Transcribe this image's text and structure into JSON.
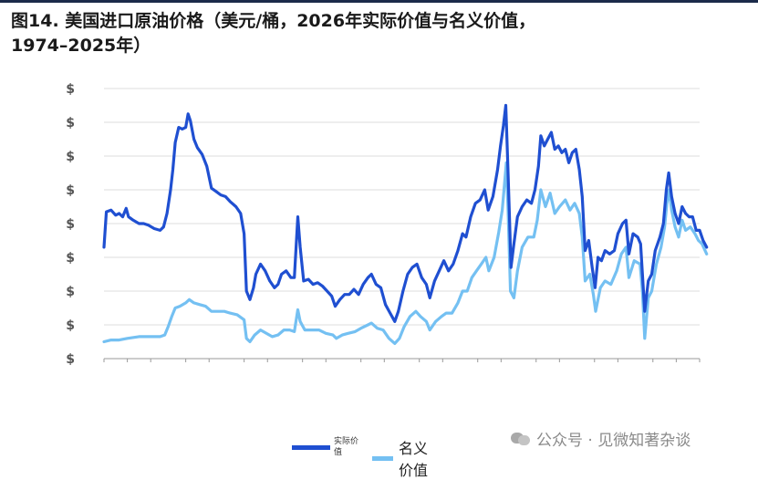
{
  "header": {
    "title_line1": "图14. 美国进口原油价格（美元/桶，2026年实际价值与名义价值，",
    "title_line2": "1974–2025年）"
  },
  "watermark": {
    "text": "公众号 · 见微知著杂谈",
    "icon": "wechat-icon"
  },
  "legend": {
    "real_label": "实际价值",
    "nominal_label": "名义价值"
  },
  "colors": {
    "real": "#1f4fd1",
    "nominal": "#74c0f2",
    "grid": "#dedede",
    "axis": "#9a9a9a",
    "header_rule": "#1b2a4a"
  },
  "chart_data": {
    "type": "line",
    "title": "图14. 美国进口原油价格（美元/桶，2026年实际价值与名义价值，1974–2025年）",
    "x_range": [
      1974,
      2025
    ],
    "ylim": [
      0,
      160
    ],
    "y_ticks": [
      {
        "value": 0,
        "label": "$"
      },
      {
        "value": 20,
        "label": "$"
      },
      {
        "value": 40,
        "label": "$"
      },
      {
        "value": 60,
        "label": "$"
      },
      {
        "value": 80,
        "label": "$"
      },
      {
        "value": 100,
        "label": "$"
      },
      {
        "value": 120,
        "label": "$"
      },
      {
        "value": 140,
        "label": "$"
      },
      {
        "value": 160,
        "label": "$"
      }
    ],
    "x_tick_years": [
      1974,
      1976,
      1978,
      1981,
      1983,
      1986,
      1988,
      1991,
      1993,
      1996,
      1998,
      2001,
      2003,
      2006,
      2008,
      2011,
      2013,
      2016,
      2018,
      2021,
      2023,
      2025
    ],
    "x_tick_text": "",
    "grid": true,
    "legend_position": "bottom",
    "series": [
      {
        "name": "实际价值",
        "key": "real",
        "points": [
          [
            1974.0,
            66
          ],
          [
            1974.2,
            87
          ],
          [
            1974.6,
            88
          ],
          [
            1975.0,
            85
          ],
          [
            1975.3,
            86
          ],
          [
            1975.6,
            84
          ],
          [
            1975.9,
            89
          ],
          [
            1976.1,
            84
          ],
          [
            1976.5,
            82
          ],
          [
            1977.0,
            80
          ],
          [
            1977.4,
            80
          ],
          [
            1977.8,
            79
          ],
          [
            1978.3,
            77
          ],
          [
            1978.8,
            76
          ],
          [
            1979.1,
            78
          ],
          [
            1979.4,
            86
          ],
          [
            1979.7,
            100
          ],
          [
            1979.9,
            112
          ],
          [
            1980.1,
            128
          ],
          [
            1980.4,
            137
          ],
          [
            1980.7,
            136
          ],
          [
            1981.0,
            137
          ],
          [
            1981.2,
            145
          ],
          [
            1981.4,
            141
          ],
          [
            1981.7,
            130
          ],
          [
            1982.0,
            125
          ],
          [
            1982.4,
            121
          ],
          [
            1982.8,
            114
          ],
          [
            1983.2,
            101
          ],
          [
            1983.6,
            99
          ],
          [
            1984.0,
            97
          ],
          [
            1984.4,
            96
          ],
          [
            1984.8,
            93
          ],
          [
            1985.3,
            90
          ],
          [
            1985.7,
            86
          ],
          [
            1986.0,
            74
          ],
          [
            1986.2,
            40
          ],
          [
            1986.5,
            35
          ],
          [
            1986.8,
            42
          ],
          [
            1987.0,
            50
          ],
          [
            1987.4,
            56
          ],
          [
            1987.8,
            52
          ],
          [
            1988.2,
            46
          ],
          [
            1988.6,
            42
          ],
          [
            1988.9,
            44
          ],
          [
            1989.2,
            50
          ],
          [
            1989.6,
            52
          ],
          [
            1990.0,
            48
          ],
          [
            1990.3,
            48
          ],
          [
            1990.6,
            84
          ],
          [
            1990.8,
            66
          ],
          [
            1991.1,
            46
          ],
          [
            1991.5,
            47
          ],
          [
            1991.9,
            44
          ],
          [
            1992.3,
            45
          ],
          [
            1992.7,
            43
          ],
          [
            1993.1,
            40
          ],
          [
            1993.5,
            37
          ],
          [
            1993.8,
            31
          ],
          [
            1994.2,
            35
          ],
          [
            1994.6,
            38
          ],
          [
            1995.0,
            38
          ],
          [
            1995.4,
            41
          ],
          [
            1995.8,
            38
          ],
          [
            1996.2,
            44
          ],
          [
            1996.6,
            48
          ],
          [
            1996.9,
            50
          ],
          [
            1997.3,
            44
          ],
          [
            1997.7,
            42
          ],
          [
            1998.1,
            32
          ],
          [
            1998.5,
            27
          ],
          [
            1998.9,
            22
          ],
          [
            1999.2,
            28
          ],
          [
            1999.6,
            40
          ],
          [
            2000.0,
            50
          ],
          [
            2000.4,
            54
          ],
          [
            2000.8,
            56
          ],
          [
            2001.2,
            48
          ],
          [
            2001.6,
            44
          ],
          [
            2001.9,
            36
          ],
          [
            2002.3,
            46
          ],
          [
            2002.7,
            52
          ],
          [
            2003.1,
            58
          ],
          [
            2003.5,
            52
          ],
          [
            2003.9,
            56
          ],
          [
            2004.3,
            64
          ],
          [
            2004.7,
            74
          ],
          [
            2005.0,
            72
          ],
          [
            2005.4,
            84
          ],
          [
            2005.8,
            92
          ],
          [
            2006.2,
            94
          ],
          [
            2006.6,
            100
          ],
          [
            2006.9,
            88
          ],
          [
            2007.3,
            96
          ],
          [
            2007.7,
            112
          ],
          [
            2007.95,
            126
          ],
          [
            2008.2,
            138
          ],
          [
            2008.4,
            150
          ],
          [
            2008.55,
            120
          ],
          [
            2008.7,
            88
          ],
          [
            2008.85,
            54
          ],
          [
            2009.1,
            68
          ],
          [
            2009.4,
            84
          ],
          [
            2009.8,
            90
          ],
          [
            2010.2,
            94
          ],
          [
            2010.6,
            92
          ],
          [
            2010.9,
            100
          ],
          [
            2011.2,
            114
          ],
          [
            2011.4,
            132
          ],
          [
            2011.7,
            126
          ],
          [
            2012.0,
            130
          ],
          [
            2012.3,
            134
          ],
          [
            2012.6,
            124
          ],
          [
            2012.9,
            126
          ],
          [
            2013.2,
            122
          ],
          [
            2013.5,
            124
          ],
          [
            2013.8,
            116
          ],
          [
            2014.1,
            122
          ],
          [
            2014.4,
            124
          ],
          [
            2014.7,
            112
          ],
          [
            2014.95,
            96
          ],
          [
            2015.2,
            64
          ],
          [
            2015.5,
            70
          ],
          [
            2015.8,
            54
          ],
          [
            2016.05,
            42
          ],
          [
            2016.3,
            60
          ],
          [
            2016.6,
            58
          ],
          [
            2016.9,
            64
          ],
          [
            2017.3,
            62
          ],
          [
            2017.7,
            64
          ],
          [
            2018.0,
            74
          ],
          [
            2018.4,
            80
          ],
          [
            2018.7,
            82
          ],
          [
            2018.95,
            62
          ],
          [
            2019.3,
            74
          ],
          [
            2019.7,
            72
          ],
          [
            2019.95,
            68
          ],
          [
            2020.1,
            50
          ],
          [
            2020.3,
            28
          ],
          [
            2020.6,
            46
          ],
          [
            2020.9,
            50
          ],
          [
            2021.2,
            64
          ],
          [
            2021.6,
            72
          ],
          [
            2021.9,
            80
          ],
          [
            2022.15,
            100
          ],
          [
            2022.35,
            110
          ],
          [
            2022.6,
            96
          ],
          [
            2022.9,
            86
          ],
          [
            2023.2,
            80
          ],
          [
            2023.5,
            90
          ],
          [
            2023.8,
            86
          ],
          [
            2024.1,
            84
          ],
          [
            2024.4,
            84
          ],
          [
            2024.7,
            76
          ],
          [
            2025.0,
            76
          ],
          [
            2025.3,
            70
          ],
          [
            2025.6,
            66
          ]
        ]
      },
      {
        "name": "名义价值",
        "key": "nominal",
        "points": [
          [
            1974.0,
            10
          ],
          [
            1974.6,
            11
          ],
          [
            1975.3,
            11
          ],
          [
            1976.0,
            12
          ],
          [
            1977.0,
            13
          ],
          [
            1978.0,
            13
          ],
          [
            1978.8,
            13
          ],
          [
            1979.2,
            14
          ],
          [
            1979.5,
            19
          ],
          [
            1979.8,
            25
          ],
          [
            1980.1,
            30
          ],
          [
            1980.5,
            31
          ],
          [
            1981.0,
            33
          ],
          [
            1981.3,
            35
          ],
          [
            1981.7,
            33
          ],
          [
            1982.2,
            32
          ],
          [
            1982.7,
            31
          ],
          [
            1983.2,
            28
          ],
          [
            1983.7,
            28
          ],
          [
            1984.3,
            28
          ],
          [
            1984.8,
            27
          ],
          [
            1985.4,
            26
          ],
          [
            1986.0,
            23
          ],
          [
            1986.2,
            12
          ],
          [
            1986.5,
            10
          ],
          [
            1986.9,
            14
          ],
          [
            1987.4,
            17
          ],
          [
            1987.9,
            15
          ],
          [
            1988.4,
            13
          ],
          [
            1988.9,
            14
          ],
          [
            1989.4,
            17
          ],
          [
            1989.9,
            17
          ],
          [
            1990.3,
            16
          ],
          [
            1990.6,
            29
          ],
          [
            1990.8,
            22
          ],
          [
            1991.2,
            17
          ],
          [
            1991.8,
            17
          ],
          [
            1992.4,
            17
          ],
          [
            1993.0,
            15
          ],
          [
            1993.6,
            14
          ],
          [
            1993.9,
            12
          ],
          [
            1994.4,
            14
          ],
          [
            1994.9,
            15
          ],
          [
            1995.5,
            16
          ],
          [
            1996.0,
            18
          ],
          [
            1996.6,
            20
          ],
          [
            1996.9,
            21
          ],
          [
            1997.4,
            18
          ],
          [
            1997.9,
            17
          ],
          [
            1998.4,
            12
          ],
          [
            1998.9,
            9
          ],
          [
            1999.3,
            12
          ],
          [
            1999.7,
            19
          ],
          [
            2000.2,
            25
          ],
          [
            2000.7,
            28
          ],
          [
            2001.1,
            25
          ],
          [
            2001.6,
            22
          ],
          [
            2001.9,
            17
          ],
          [
            2002.4,
            22
          ],
          [
            2002.9,
            25
          ],
          [
            2003.3,
            27
          ],
          [
            2003.8,
            27
          ],
          [
            2004.3,
            33
          ],
          [
            2004.7,
            40
          ],
          [
            2005.1,
            40
          ],
          [
            2005.5,
            48
          ],
          [
            2005.9,
            52
          ],
          [
            2006.3,
            56
          ],
          [
            2006.7,
            60
          ],
          [
            2006.95,
            52
          ],
          [
            2007.4,
            60
          ],
          [
            2007.8,
            75
          ],
          [
            2008.1,
            88
          ],
          [
            2008.45,
            116
          ],
          [
            2008.6,
            88
          ],
          [
            2008.8,
            40
          ],
          [
            2009.1,
            36
          ],
          [
            2009.4,
            52
          ],
          [
            2009.8,
            66
          ],
          [
            2010.3,
            72
          ],
          [
            2010.8,
            72
          ],
          [
            2011.1,
            82
          ],
          [
            2011.4,
            100
          ],
          [
            2011.8,
            90
          ],
          [
            2012.2,
            98
          ],
          [
            2012.6,
            86
          ],
          [
            2013.0,
            90
          ],
          [
            2013.5,
            94
          ],
          [
            2013.9,
            88
          ],
          [
            2014.3,
            92
          ],
          [
            2014.7,
            86
          ],
          [
            2014.95,
            72
          ],
          [
            2015.2,
            46
          ],
          [
            2015.6,
            50
          ],
          [
            2015.9,
            38
          ],
          [
            2016.1,
            28
          ],
          [
            2016.5,
            42
          ],
          [
            2016.9,
            46
          ],
          [
            2017.4,
            44
          ],
          [
            2017.9,
            52
          ],
          [
            2018.3,
            62
          ],
          [
            2018.7,
            66
          ],
          [
            2018.95,
            48
          ],
          [
            2019.4,
            58
          ],
          [
            2019.9,
            56
          ],
          [
            2020.1,
            40
          ],
          [
            2020.3,
            12
          ],
          [
            2020.6,
            36
          ],
          [
            2020.9,
            40
          ],
          [
            2021.3,
            56
          ],
          [
            2021.7,
            66
          ],
          [
            2022.0,
            78
          ],
          [
            2022.2,
            92
          ],
          [
            2022.4,
            100
          ],
          [
            2022.6,
            88
          ],
          [
            2022.9,
            78
          ],
          [
            2023.2,
            72
          ],
          [
            2023.5,
            82
          ],
          [
            2023.8,
            76
          ],
          [
            2024.2,
            78
          ],
          [
            2024.6,
            74
          ],
          [
            2024.9,
            70
          ],
          [
            2025.2,
            68
          ],
          [
            2025.6,
            62
          ]
        ]
      }
    ]
  }
}
